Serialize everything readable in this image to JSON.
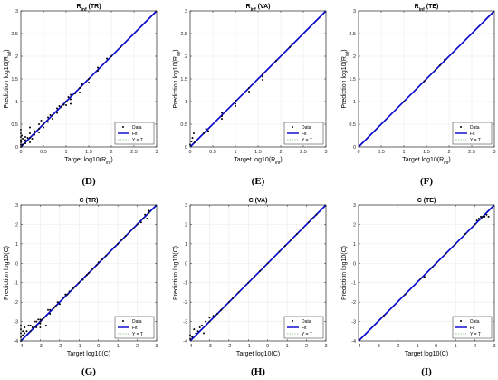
{
  "page": {
    "background": "#ffffff",
    "colors": {
      "fit": "#0000c8",
      "yt": "#7fb27f",
      "data": "#000000",
      "axis": "#262626",
      "grid": "#e8e8e8"
    }
  },
  "chart_data": [
    {
      "type": "scatter",
      "panel_label": "(D)",
      "title": "R",
      "title_sub": "inf",
      "title_suffix": " (TR)",
      "xlabel": "Target log10(R",
      "xlabel_sub": "inf",
      "xlabel_suffix": ")",
      "ylabel": "Prediction log10(R",
      "ylabel_sub": "inf",
      "ylabel_suffix": ")",
      "xlim": [
        0,
        3
      ],
      "ylim": [
        0,
        3
      ],
      "xticks": [
        0,
        0.5,
        1,
        1.5,
        2,
        2.5,
        3
      ],
      "xtick_labels": [
        "0",
        "0.5",
        "1",
        "1.5",
        "2",
        "2.5",
        "3"
      ],
      "yticks": [
        0,
        0.5,
        1,
        1.5,
        2,
        2.5,
        3
      ],
      "ytick_labels": [
        "0",
        "0.5",
        "1",
        "1.5",
        "2",
        "2.5",
        "3"
      ],
      "grid": true,
      "legend": {
        "position": "bottom-right",
        "entries": [
          "Data",
          "Fit",
          "Y = T"
        ]
      },
      "fit": {
        "x": [
          0,
          3
        ],
        "y": [
          0,
          3
        ]
      },
      "ref": {
        "x": [
          0,
          3
        ],
        "y": [
          0,
          3
        ]
      },
      "points": [
        [
          0,
          0.0
        ],
        [
          0,
          0.05
        ],
        [
          0,
          0.1
        ],
        [
          0,
          0.15
        ],
        [
          0,
          0.22
        ],
        [
          0,
          0.3
        ],
        [
          0,
          0.38
        ],
        [
          0.01,
          0.12
        ],
        [
          0.02,
          0.25
        ],
        [
          0.03,
          0.05
        ],
        [
          0.04,
          0.18
        ],
        [
          0.1,
          0.08
        ],
        [
          0.1,
          0.15
        ],
        [
          0.1,
          0.22
        ],
        [
          0.15,
          0.2
        ],
        [
          0.2,
          0.1
        ],
        [
          0.2,
          0.2
        ],
        [
          0.2,
          0.3
        ],
        [
          0.2,
          0.43
        ],
        [
          0.25,
          0.18
        ],
        [
          0.3,
          0.27
        ],
        [
          0.3,
          0.35
        ],
        [
          0.4,
          0.32
        ],
        [
          0.4,
          0.4
        ],
        [
          0.4,
          0.5
        ],
        [
          0.45,
          0.58
        ],
        [
          0.5,
          0.43
        ],
        [
          0.5,
          0.5
        ],
        [
          0.6,
          0.55
        ],
        [
          0.6,
          0.65
        ],
        [
          0.65,
          0.7
        ],
        [
          0.7,
          0.62
        ],
        [
          0.7,
          0.7
        ],
        [
          0.8,
          0.75
        ],
        [
          0.8,
          0.85
        ],
        [
          0.85,
          0.9
        ],
        [
          0.9,
          0.88
        ],
        [
          0.95,
          0.93
        ],
        [
          1.0,
          0.92
        ],
        [
          1.0,
          1.0
        ],
        [
          1.05,
          1.1
        ],
        [
          1.1,
          0.95
        ],
        [
          1.1,
          1.05
        ],
        [
          1.1,
          1.15
        ],
        [
          1.2,
          1.18
        ],
        [
          1.3,
          1.2
        ],
        [
          1.3,
          1.3
        ],
        [
          1.35,
          1.38
        ],
        [
          1.5,
          1.5
        ],
        [
          1.5,
          1.42
        ],
        [
          1.7,
          1.68
        ],
        [
          1.7,
          1.75
        ],
        [
          1.9,
          1.95
        ],
        [
          2.0,
          2.0
        ],
        [
          2.2,
          2.2
        ]
      ]
    },
    {
      "type": "scatter",
      "panel_label": "(E)",
      "title": "R",
      "title_sub": "inf",
      "title_suffix": " (VA)",
      "xlabel": "Target log10(R",
      "xlabel_sub": "inf",
      "xlabel_suffix": ")",
      "ylabel": "Prediction log10(R",
      "ylabel_sub": "inf",
      "ylabel_suffix": ")",
      "xlim": [
        0,
        3
      ],
      "ylim": [
        0,
        3
      ],
      "xticks": [
        0,
        0.5,
        1,
        1.5,
        2,
        2.5,
        3
      ],
      "xtick_labels": [
        "0",
        "0.5",
        "1",
        "1.5",
        "2",
        "2.5",
        "3"
      ],
      "yticks": [
        0,
        0.5,
        1,
        1.5,
        2,
        2.5,
        3
      ],
      "ytick_labels": [
        "0",
        "0.5",
        "1",
        "1.5",
        "2",
        "2.5",
        "3"
      ],
      "grid": true,
      "legend": {
        "position": "bottom-right",
        "entries": [
          "Data",
          "Fit",
          "Y = T"
        ]
      },
      "fit": {
        "x": [
          0,
          3
        ],
        "y": [
          0,
          3
        ]
      },
      "ref": {
        "x": [
          0,
          3
        ],
        "y": [
          0,
          3
        ]
      },
      "points": [
        [
          0,
          0.05
        ],
        [
          0.03,
          0.12
        ],
        [
          0.05,
          0.2
        ],
        [
          0.08,
          0.3
        ],
        [
          0.1,
          0.1
        ],
        [
          0.3,
          0.3
        ],
        [
          0.35,
          0.4
        ],
        [
          0.4,
          0.35
        ],
        [
          0.7,
          0.68
        ],
        [
          0.7,
          0.62
        ],
        [
          0.7,
          0.75
        ],
        [
          1.0,
          0.95
        ],
        [
          1.0,
          1.02
        ],
        [
          1.0,
          0.9
        ],
        [
          1.3,
          1.3
        ],
        [
          1.3,
          1.22
        ],
        [
          1.6,
          1.6
        ],
        [
          1.6,
          1.55
        ],
        [
          1.6,
          1.48
        ],
        [
          1.9,
          1.9
        ],
        [
          2.2,
          2.2
        ],
        [
          2.25,
          2.28
        ]
      ]
    },
    {
      "type": "scatter",
      "panel_label": "(F)",
      "title": "R",
      "title_sub": "inf",
      "title_suffix": " (TE)",
      "xlabel": "Target log10(R",
      "xlabel_sub": "inf",
      "xlabel_suffix": ")",
      "ylabel": "Prediction log10(R",
      "ylabel_sub": "inf",
      "ylabel_suffix": ")",
      "xlim": [
        0,
        3
      ],
      "ylim": [
        0,
        3
      ],
      "xticks": [
        0,
        0.5,
        1,
        1.5,
        2,
        2.5,
        3
      ],
      "xtick_labels": [
        "0",
        "0.5",
        "1",
        "1.5",
        "2",
        "2.5",
        "3"
      ],
      "yticks": [
        0,
        0.5,
        1,
        1.5,
        2,
        2.5,
        3
      ],
      "ytick_labels": [
        "0",
        "0.5",
        "1",
        "1.5",
        "2",
        "2.5",
        "3"
      ],
      "grid": true,
      "legend": {
        "position": "bottom-right",
        "entries": [
          "Data",
          "Fit",
          "Y = T"
        ]
      },
      "fit": {
        "x": [
          0,
          3
        ],
        "y": [
          0,
          3
        ]
      },
      "ref": {
        "x": [
          0,
          3
        ],
        "y": [
          0,
          3
        ]
      },
      "points": [
        [
          1.0,
          1.0
        ],
        [
          1.45,
          1.45
        ],
        [
          1.7,
          1.7
        ],
        [
          1.8,
          1.8
        ],
        [
          1.9,
          1.92
        ]
      ]
    },
    {
      "type": "scatter",
      "panel_label": "(G)",
      "title": "C (TR)",
      "title_sub": "",
      "title_suffix": "",
      "xlabel": "Target log10(C)",
      "xlabel_sub": "",
      "xlabel_suffix": "",
      "ylabel": "Prediction log10(C)",
      "ylabel_sub": "",
      "ylabel_suffix": "",
      "xlim": [
        -4,
        3
      ],
      "ylim": [
        -4,
        3
      ],
      "xticks": [
        -4,
        -3,
        -2,
        -1,
        0,
        1,
        2,
        3
      ],
      "xtick_labels": [
        "-4",
        "-3",
        "-2",
        "-1",
        "0",
        "1",
        "2",
        "3"
      ],
      "yticks": [
        -4,
        -3,
        -2,
        -1,
        0,
        1,
        2,
        3
      ],
      "ytick_labels": [
        "-4",
        "-3",
        "-2",
        "-1",
        "0",
        "1",
        "2",
        "3"
      ],
      "grid": true,
      "legend": {
        "position": "bottom-right",
        "entries": [
          "Data",
          "Fit",
          "Y = T"
        ]
      },
      "fit": {
        "x": [
          -4,
          3
        ],
        "y": [
          -4,
          3
        ]
      },
      "ref": {
        "x": [
          -4,
          3
        ],
        "y": [
          -4,
          3
        ]
      },
      "points": [
        [
          -4,
          -4.0
        ],
        [
          -4,
          -3.8
        ],
        [
          -4,
          -3.6
        ],
        [
          -4,
          -3.4
        ],
        [
          -4,
          -3.2
        ],
        [
          -3.9,
          -3.7
        ],
        [
          -3.9,
          -3.5
        ],
        [
          -3.8,
          -3.3
        ],
        [
          -3.8,
          -3.6
        ],
        [
          -3.7,
          -3.5
        ],
        [
          -3.6,
          -3.2
        ],
        [
          -3.5,
          -3.5
        ],
        [
          -3.5,
          -3.2
        ],
        [
          -3.4,
          -3.3
        ],
        [
          -3.3,
          -3.0
        ],
        [
          -3.2,
          -3.3
        ],
        [
          -3.2,
          -3.0
        ],
        [
          -3.1,
          -2.9
        ],
        [
          -3.0,
          -3.1
        ],
        [
          -3.0,
          -3.0
        ],
        [
          -3.0,
          -2.9
        ],
        [
          -3.0,
          -3.3
        ],
        [
          -2.9,
          -2.9
        ],
        [
          -2.8,
          -2.8
        ],
        [
          -2.7,
          -3.2
        ],
        [
          -2.6,
          -2.4
        ],
        [
          -2.5,
          -2.4
        ],
        [
          -2.5,
          -2.6
        ],
        [
          -2.3,
          -2.3
        ],
        [
          -2.2,
          -2.2
        ],
        [
          -2.1,
          -2.0
        ],
        [
          -2.0,
          -2.1
        ],
        [
          -1.8,
          -1.75
        ],
        [
          -1.7,
          -1.6
        ],
        [
          -1.6,
          -1.6
        ],
        [
          -1.5,
          -1.45
        ],
        [
          -1.3,
          -1.3
        ],
        [
          -1.2,
          -1.2
        ],
        [
          -1.0,
          -1.0
        ],
        [
          -0.8,
          -0.85
        ],
        [
          -0.6,
          -0.6
        ],
        [
          -0.5,
          -0.5
        ],
        [
          -0.3,
          -0.3
        ],
        [
          -0.1,
          -0.1
        ],
        [
          0.0,
          0.05
        ],
        [
          0.2,
          0.2
        ],
        [
          0.4,
          0.4
        ],
        [
          0.6,
          0.6
        ],
        [
          0.8,
          0.8
        ],
        [
          1.0,
          1.0
        ],
        [
          1.2,
          1.2
        ],
        [
          1.4,
          1.4
        ],
        [
          1.6,
          1.6
        ],
        [
          1.8,
          1.8
        ],
        [
          2.0,
          2.0
        ],
        [
          2.2,
          2.1
        ],
        [
          2.3,
          2.3
        ],
        [
          2.4,
          2.5
        ],
        [
          2.5,
          2.3
        ],
        [
          2.6,
          2.6
        ],
        [
          2.6,
          2.7
        ]
      ]
    },
    {
      "type": "scatter",
      "panel_label": "(H)",
      "title": "C (VA)",
      "title_sub": "",
      "title_suffix": "",
      "xlabel": "Target log10(C)",
      "xlabel_sub": "",
      "xlabel_suffix": "",
      "ylabel": "Prediction log10(C)",
      "ylabel_sub": "",
      "ylabel_suffix": "",
      "xlim": [
        -4,
        3
      ],
      "ylim": [
        -4,
        3
      ],
      "xticks": [
        -4,
        -3,
        -2,
        -1,
        0,
        1,
        2,
        3
      ],
      "xtick_labels": [
        "-4",
        "-3",
        "-2",
        "-1",
        "0",
        "1",
        "2",
        "3"
      ],
      "yticks": [
        -4,
        -3,
        -2,
        -1,
        0,
        1,
        2,
        3
      ],
      "ytick_labels": [
        "-4",
        "-3",
        "-2",
        "-1",
        "0",
        "1",
        "2",
        "3"
      ],
      "grid": true,
      "legend": {
        "position": "bottom-right",
        "entries": [
          "Data",
          "Fit",
          "Y = T"
        ]
      },
      "fit": {
        "x": [
          -4,
          3
        ],
        "y": [
          -4,
          3
        ]
      },
      "ref": {
        "x": [
          -4,
          3
        ],
        "y": [
          -4,
          3
        ]
      },
      "points": [
        [
          -4,
          -3.9
        ],
        [
          -4,
          -3.7
        ],
        [
          -3.9,
          -3.8
        ],
        [
          -3.8,
          -3.4
        ],
        [
          -3.7,
          -3.6
        ],
        [
          -3.6,
          -3.5
        ],
        [
          -3.5,
          -3.3
        ],
        [
          -3.4,
          -3.2
        ],
        [
          -3.3,
          -3.6
        ],
        [
          -3.2,
          -3.0
        ],
        [
          -3.0,
          -3.0
        ],
        [
          -3.0,
          -2.8
        ],
        [
          -2.8,
          -2.7
        ],
        [
          -2.6,
          -2.6
        ],
        [
          -2.4,
          -2.4
        ],
        [
          -2.2,
          -2.2
        ],
        [
          -2.0,
          -2.0
        ],
        [
          -1.8,
          -1.8
        ],
        [
          -1.5,
          -1.5
        ],
        [
          -1.2,
          -1.2
        ],
        [
          -1.0,
          -1.0
        ],
        [
          -0.7,
          -0.7
        ],
        [
          -0.4,
          -0.4
        ],
        [
          -0.2,
          -0.2
        ],
        [
          0.0,
          0.0
        ],
        [
          0.3,
          0.3
        ],
        [
          0.6,
          0.6
        ],
        [
          0.9,
          0.9
        ],
        [
          1.2,
          1.2
        ],
        [
          1.5,
          1.5
        ],
        [
          1.8,
          1.8
        ],
        [
          2.1,
          2.1
        ],
        [
          2.3,
          2.3
        ],
        [
          2.5,
          2.5
        ]
      ]
    },
    {
      "type": "scatter",
      "panel_label": "(I)",
      "title": "C (TE)",
      "title_sub": "",
      "title_suffix": "",
      "xlabel": "Target log10(C)",
      "xlabel_sub": "",
      "xlabel_suffix": "",
      "ylabel": "Prediction log10(C)",
      "ylabel_sub": "",
      "ylabel_suffix": "",
      "xlim": [
        -4,
        3
      ],
      "ylim": [
        -4,
        3
      ],
      "xticks": [
        -4,
        -3,
        -2,
        -1,
        0,
        1,
        2,
        3
      ],
      "xtick_labels": [
        "-4",
        "-3",
        "-2",
        "-1",
        "0",
        "1",
        "2",
        "3"
      ],
      "yticks": [
        -4,
        -3,
        -2,
        -1,
        0,
        1,
        2,
        3
      ],
      "ytick_labels": [
        "-4",
        "-3",
        "-2",
        "-1",
        "0",
        "1",
        "2",
        "3"
      ],
      "grid": true,
      "legend": {
        "position": "bottom-right",
        "entries": [
          "Data",
          "Fit",
          "Y = T"
        ]
      },
      "fit": {
        "x": [
          -4,
          3
        ],
        "y": [
          -4,
          3
        ]
      },
      "ref": {
        "x": [
          -4,
          3
        ],
        "y": [
          -4,
          3
        ]
      },
      "points": [
        [
          -2.7,
          -2.7
        ],
        [
          -1.6,
          -1.6
        ],
        [
          -0.8,
          -0.8
        ],
        [
          -0.6,
          -0.7
        ],
        [
          -0.2,
          -0.2
        ],
        [
          0.0,
          0.0
        ],
        [
          0.5,
          0.5
        ],
        [
          1.0,
          1.0
        ],
        [
          1.5,
          1.5
        ],
        [
          2.0,
          2.0
        ],
        [
          2.1,
          2.2
        ],
        [
          2.2,
          2.3
        ],
        [
          2.3,
          2.4
        ],
        [
          2.4,
          2.4
        ],
        [
          2.5,
          2.4
        ],
        [
          2.6,
          2.5
        ],
        [
          2.7,
          2.4
        ]
      ]
    }
  ]
}
